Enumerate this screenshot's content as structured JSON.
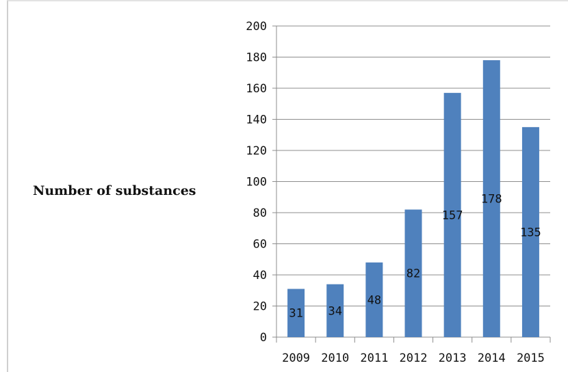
{
  "chart_data": {
    "type": "bar",
    "categories": [
      "2009",
      "2010",
      "2011",
      "2012",
      "2013",
      "2014",
      "2015"
    ],
    "values": [
      31,
      34,
      48,
      82,
      157,
      178,
      135
    ],
    "data_labels": [
      "31",
      "34",
      "48",
      "82",
      "157",
      "178",
      "135"
    ],
    "ylabel": "Number of substances",
    "ylim": [
      0,
      200
    ],
    "yticks": [
      "0",
      "20",
      "40",
      "60",
      "80",
      "100",
      "120",
      "140",
      "160",
      "180",
      "200"
    ],
    "grid": true,
    "bar_color": "#4f81bd",
    "legend": "none"
  }
}
